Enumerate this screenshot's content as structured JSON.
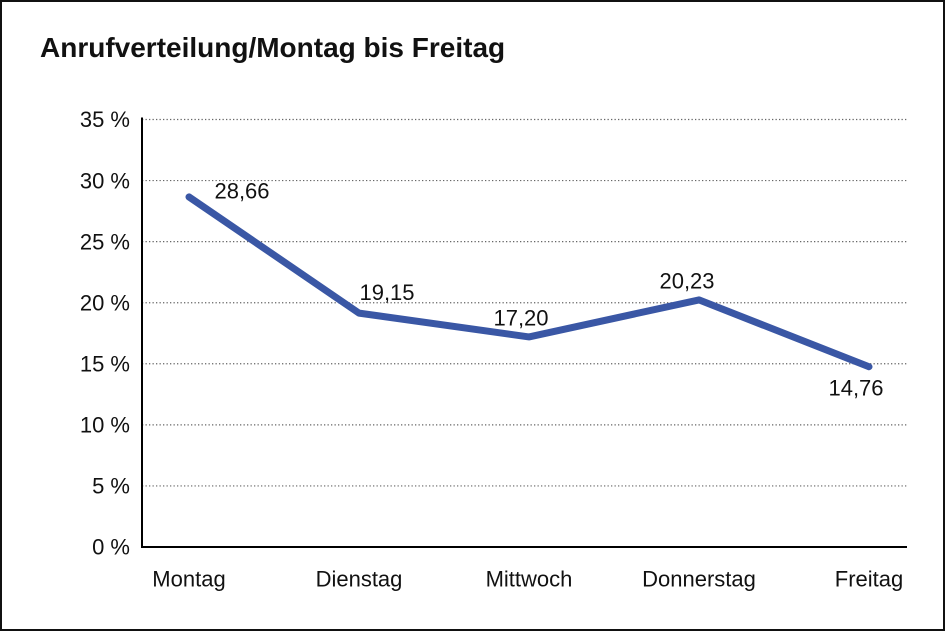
{
  "title": "Anrufverteilung/Montag bis Freitag",
  "chart_data": {
    "type": "line",
    "title": "Anrufverteilung/Montag bis Freitag",
    "categories": [
      "Montag",
      "Dienstag",
      "Mittwoch",
      "Donnerstag",
      "Freitag"
    ],
    "values": [
      28.66,
      19.15,
      17.2,
      20.23,
      14.76
    ],
    "value_labels": [
      "28,66",
      "19,15",
      "17,20",
      "20,23",
      "14,76"
    ],
    "xlabel": "",
    "ylabel": "",
    "ylim": [
      0,
      35
    ],
    "ytick_step": 5,
    "ytick_labels": [
      "0 %",
      "5 %",
      "10 %",
      "15 %",
      "20 %",
      "25 %",
      "30 %",
      "35 %"
    ],
    "grid": "horizontal-dotted",
    "legend": "none",
    "colors": {
      "line": "#3A57A5",
      "axis": "#000000",
      "grid": "#666666",
      "text": "#111111"
    }
  }
}
